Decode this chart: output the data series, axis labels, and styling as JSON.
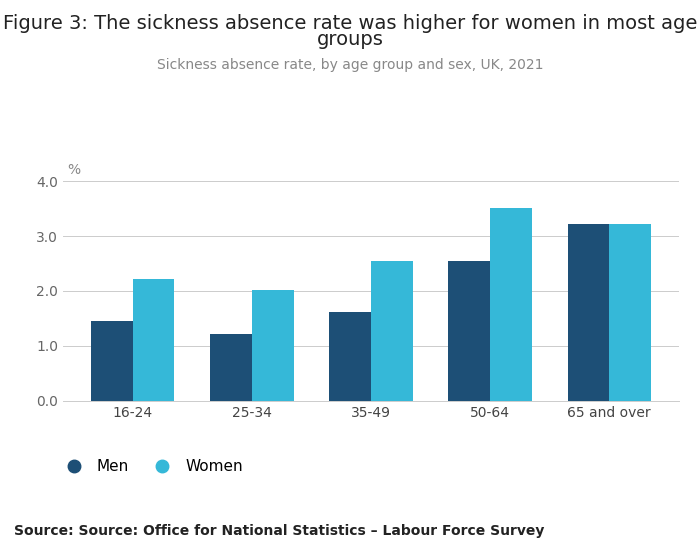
{
  "title_line1": "Figure 3: The sickness absence rate was higher for women in most age",
  "title_line2": "groups",
  "subtitle": "Sickness absence rate, by age group and sex, UK, 2021",
  "source": "Source: Source: Office for National Statistics – Labour Force Survey",
  "categories": [
    "16-24",
    "25-34",
    "35-49",
    "50-64",
    "65 and over"
  ],
  "men_values": [
    1.45,
    1.22,
    1.62,
    2.55,
    3.22
  ],
  "women_values": [
    2.22,
    2.02,
    2.55,
    3.52,
    3.22
  ],
  "men_color": "#1d4f76",
  "women_color": "#35b8d8",
  "ylabel": "%",
  "ylim": [
    0,
    4.2
  ],
  "yticks": [
    0.0,
    1.0,
    2.0,
    3.0,
    4.0
  ],
  "bar_width": 0.35,
  "background_color": "#ffffff",
  "title_fontsize": 14,
  "subtitle_fontsize": 10,
  "tick_fontsize": 10,
  "source_fontsize": 10,
  "legend_labels": [
    "Men",
    "Women"
  ]
}
